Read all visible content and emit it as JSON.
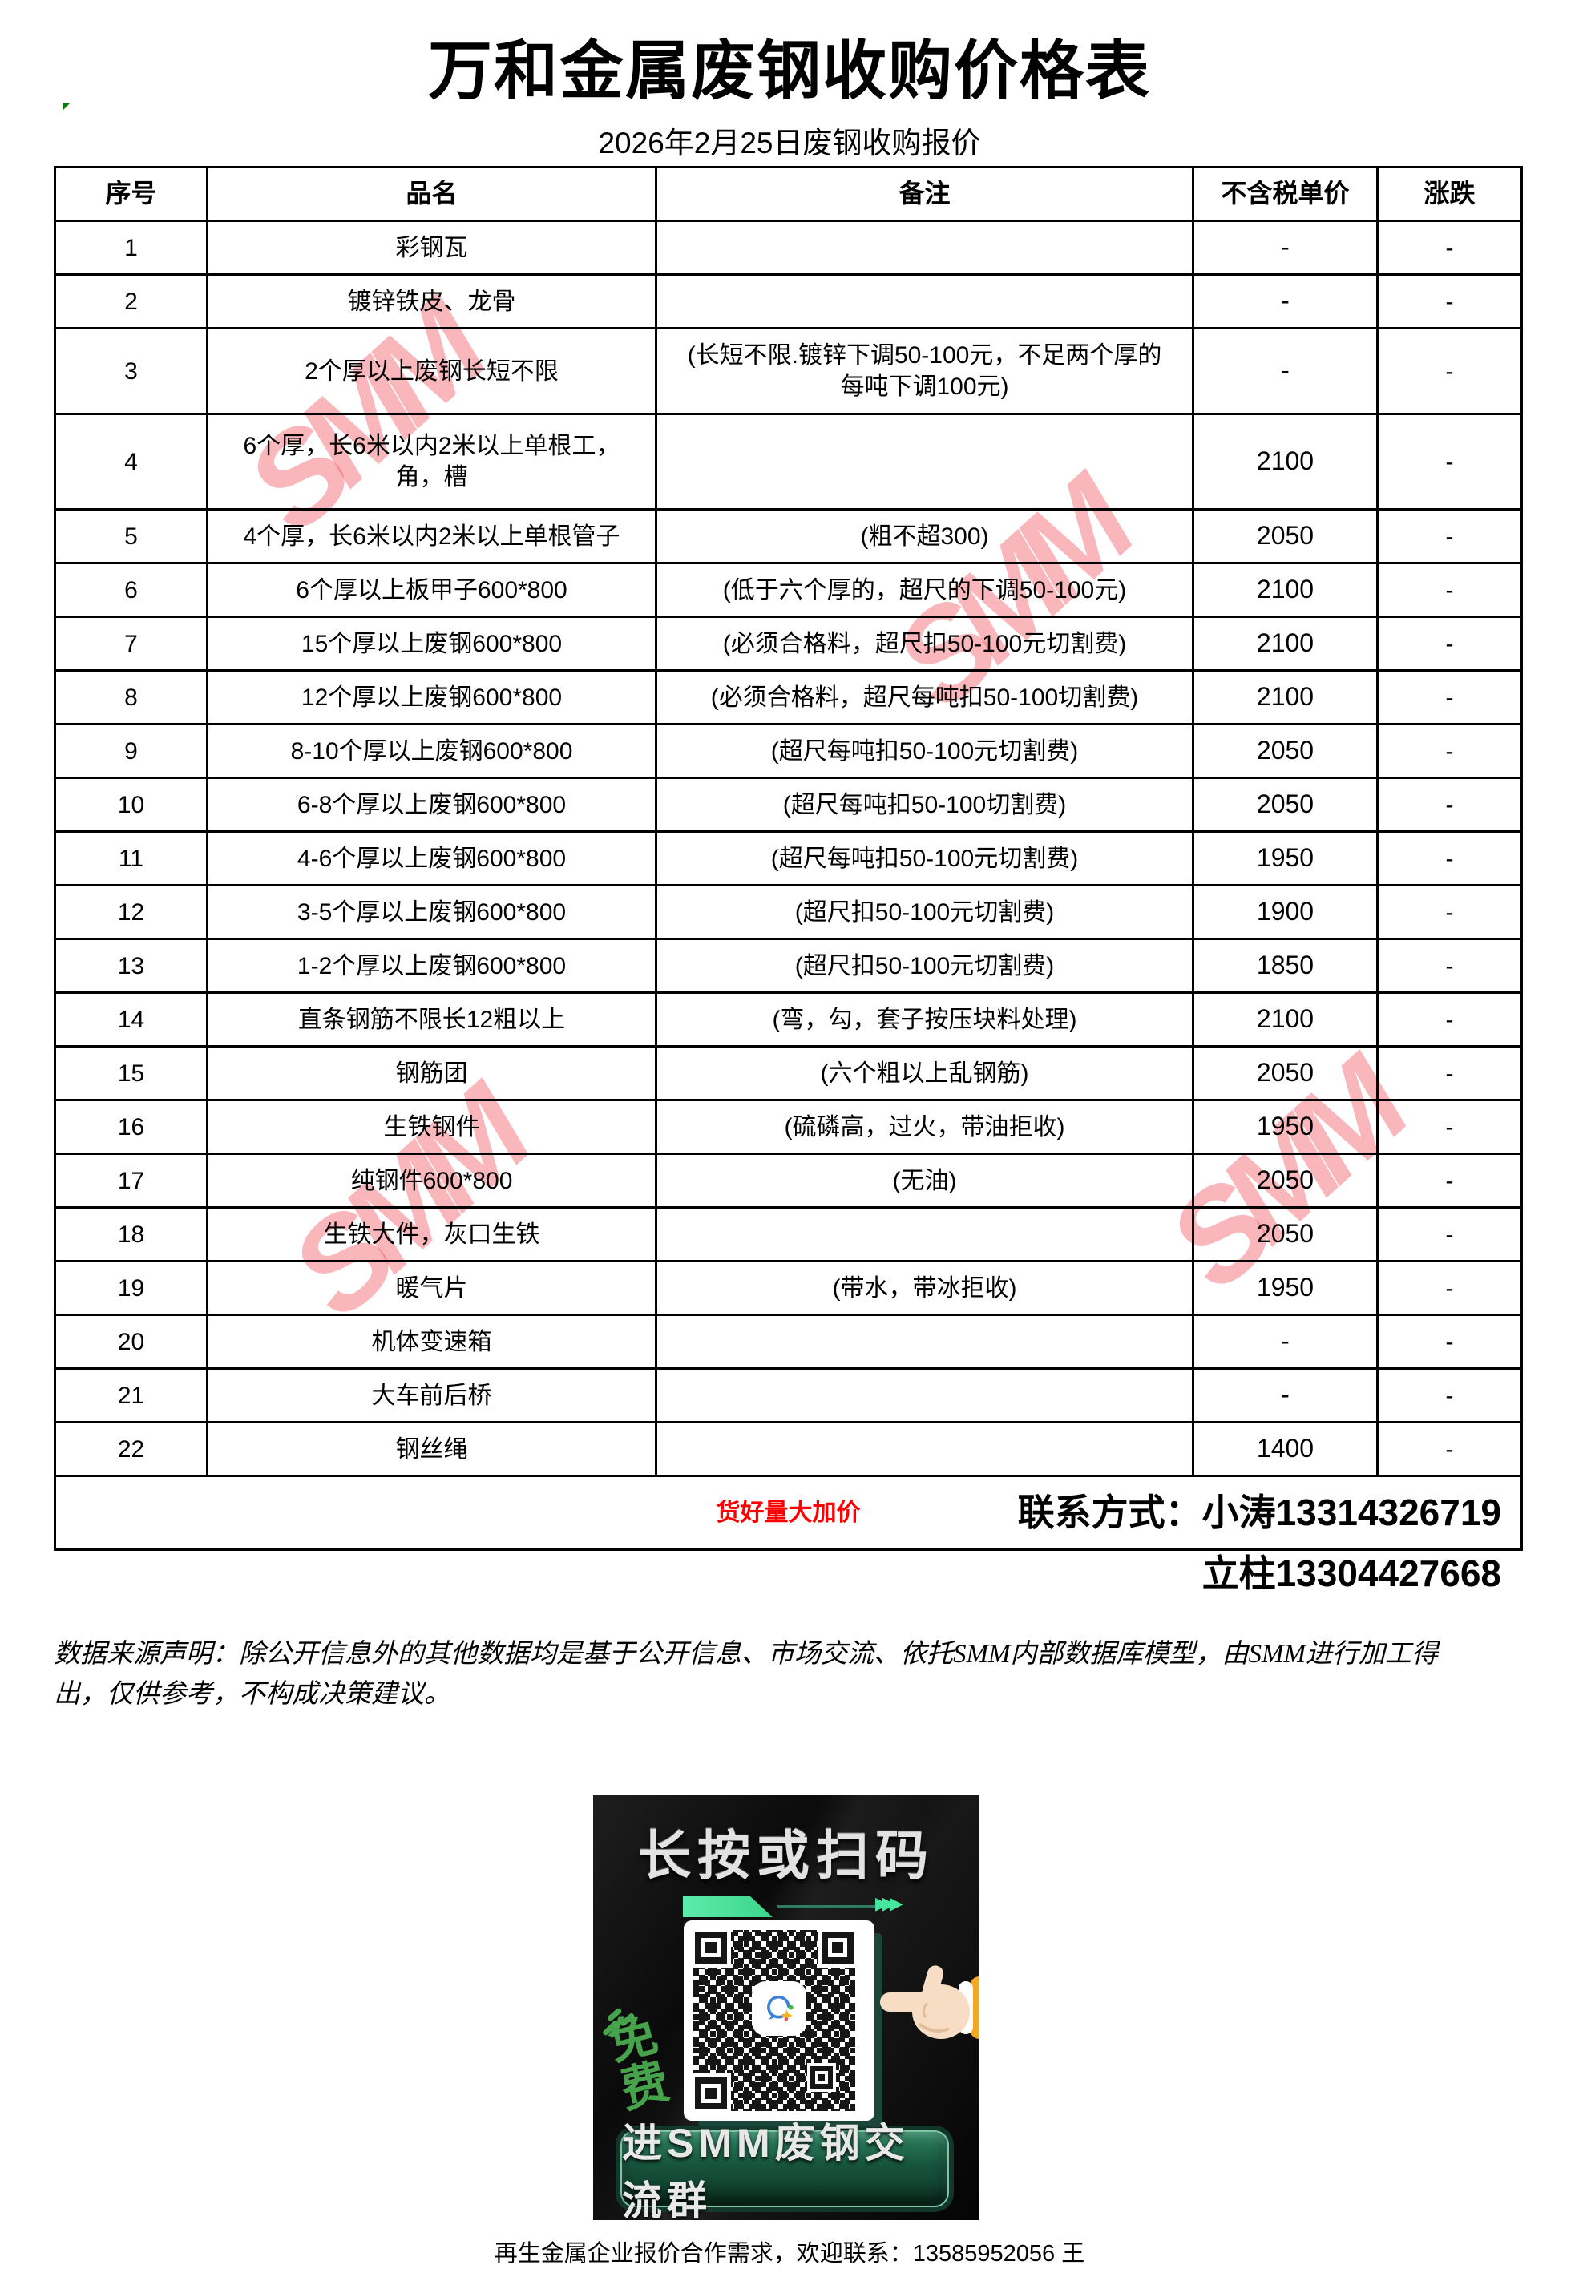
{
  "page": {
    "title": "万和金属废钢收购价格表",
    "subtitle": "2026年2月25日废钢收购报价",
    "bottom_note": "再生金属企业报价合作需求，欢迎联系：13585952056 王"
  },
  "table": {
    "headers": [
      "序号",
      "品名",
      "备注",
      "不含税单价",
      "涨跌"
    ],
    "rows": [
      [
        "1",
        "彩钢瓦",
        "",
        "-",
        "-"
      ],
      [
        "2",
        "镀锌铁皮、龙骨",
        "",
        "-",
        "-"
      ],
      [
        "3",
        "2个厚以上废钢长短不限",
        "(长短不限.镀锌下调50-100元，不足两个厚的\n每吨下调100元)",
        "-",
        "-"
      ],
      [
        "4",
        "6个厚，长6米以内2米以上单根工，\n角，槽",
        "",
        "2100",
        "-"
      ],
      [
        "5",
        "4个厚，长6米以内2米以上单根管子",
        "(粗不超300)",
        "2050",
        "-"
      ],
      [
        "6",
        "6个厚以上板甲子600*800",
        "(低于六个厚的，超尺的下调50-100元)",
        "2100",
        "-"
      ],
      [
        "7",
        "15个厚以上废钢600*800",
        "(必须合格料，超尺扣50-100元切割费)",
        "2100",
        "-"
      ],
      [
        "8",
        "12个厚以上废钢600*800",
        "(必须合格料，超尺每吨扣50-100切割费)",
        "2100",
        "-"
      ],
      [
        "9",
        "8-10个厚以上废钢600*800",
        "(超尺每吨扣50-100元切割费)",
        "2050",
        "-"
      ],
      [
        "10",
        "6-8个厚以上废钢600*800",
        "(超尺每吨扣50-100切割费)",
        "2050",
        "-"
      ],
      [
        "11",
        "4-6个厚以上废钢600*800",
        "(超尺每吨扣50-100元切割费)",
        "1950",
        "-"
      ],
      [
        "12",
        "3-5个厚以上废钢600*800",
        "(超尺扣50-100元切割费)",
        "1900",
        "-"
      ],
      [
        "13",
        "1-2个厚以上废钢600*800",
        "(超尺扣50-100元切割费)",
        "1850",
        "-"
      ],
      [
        "14",
        "直条钢筋不限长12粗以上",
        "(弯，勾，套子按压块料处理)",
        "2100",
        "-"
      ],
      [
        "15",
        "钢筋团",
        "(六个粗以上乱钢筋)",
        "2050",
        "-"
      ],
      [
        "16",
        "生铁钢件",
        "(硫磷高，过火，带油拒收)",
        "1950",
        "-"
      ],
      [
        "17",
        "纯钢件600*800",
        "(无油)",
        "2050",
        "-"
      ],
      [
        "18",
        "生铁大件，灰口生铁",
        "",
        "2050",
        "-"
      ],
      [
        "19",
        "暖气片",
        "(带水，带冰拒收)",
        "1950",
        "-"
      ],
      [
        "20",
        "机体变速箱",
        "",
        "-",
        "-"
      ],
      [
        "21",
        "大车前后桥",
        "",
        "-",
        "-"
      ],
      [
        "22",
        "钢丝绳",
        "",
        "1400",
        "-"
      ]
    ],
    "footer_note": "货好量大加价"
  },
  "contact": {
    "line1": "联系方式：小涛13314326719",
    "line2": "立柱13304427668"
  },
  "disclaimer": "数据来源声明：除公开信息外的其他数据均是基于公开信息、市场交流、依托SMM内部数据库模型，由SMM进行加工得\n出，仅供参考，不构成决策建议。",
  "watermark": {
    "text": "SMM",
    "color": "#f04b55"
  },
  "banner": {
    "headline": "长按或扫码",
    "free_label": "免费",
    "button_label": "进SMM废钢交流群"
  },
  "icons": {
    "qr_arrows": "▶▶▶"
  },
  "colors": {
    "highlight_red": "#ff0000",
    "watermark_pink": "#f04b55",
    "mint_green": "#4fe3a0",
    "free_green": "#46a34b",
    "button_dark_green": "#17543e",
    "banner_black": "#0c0c0c",
    "marker_green": "#0f7a12"
  }
}
